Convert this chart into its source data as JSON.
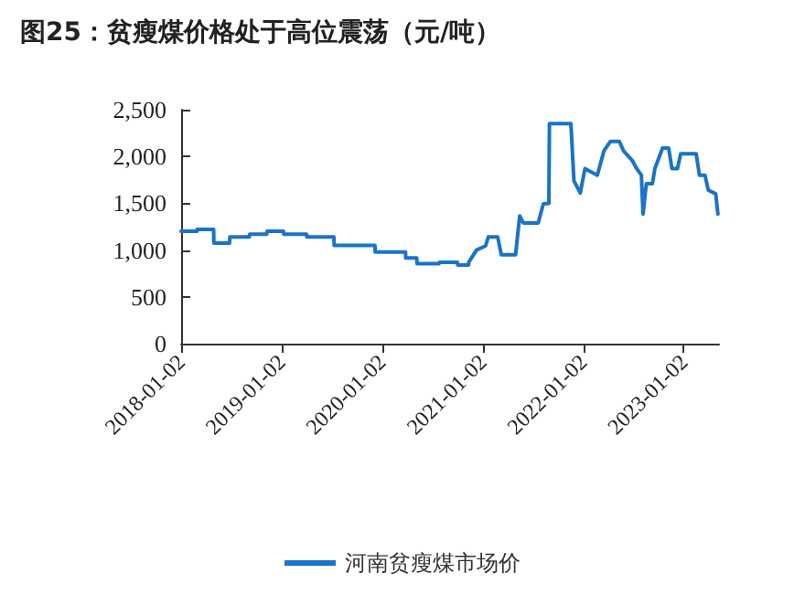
{
  "chart_data": {
    "type": "line",
    "title": "图25：贫瘦煤价格处于高位震荡（元/吨）",
    "legend": "bottom",
    "grid": false,
    "marker": "none",
    "line_style": "solid",
    "xlim": [
      "2018-01-02",
      "2023-05-10"
    ],
    "xticks": [
      "2018-01-02",
      "2019-01-02",
      "2020-01-02",
      "2021-01-02",
      "2022-01-02",
      "2023-01-02"
    ],
    "ylim": [
      0,
      2500
    ],
    "yticks": [
      0,
      500,
      {
        "value": 1000,
        "label": "1,000"
      },
      {
        "value": 1500,
        "label": "1,500"
      },
      {
        "value": 2000,
        "label": "2,000"
      },
      {
        "value": 2500,
        "label": "2,500"
      }
    ],
    "series": [
      {
        "name": "河南贫瘦煤市场价",
        "color": "#1a73c8",
        "x": [
          "2018-01-02",
          "2018-03-01",
          "2018-03-01",
          "2018-04-30",
          "2018-05-01",
          "2018-06-27",
          "2018-06-28",
          "2018-09-07",
          "2018-09-08",
          "2018-11-09",
          "2018-11-10",
          "2019-01-09",
          "2019-01-10",
          "2019-04-03",
          "2019-04-04",
          "2019-07-11",
          "2019-07-12",
          "2019-12-07",
          "2019-12-08",
          "2020-03-27",
          "2020-03-28",
          "2020-05-07",
          "2020-05-08",
          "2020-07-27",
          "2020-07-28",
          "2020-10-02",
          "2020-10-03",
          "2020-11-11",
          "2020-11-12",
          "2020-12-10",
          "2021-01-12",
          "2021-01-22",
          "2021-02-25",
          "2021-03-10",
          "2021-05-01",
          "2021-05-16",
          "2021-05-29",
          "2021-07-22",
          "2021-08-10",
          "2021-08-30",
          "2021-09-01",
          "2021-11-18",
          "2021-11-29",
          "2021-12-22",
          "2022-01-08",
          "2022-02-22",
          "2022-03-18",
          "2022-04-10",
          "2022-05-13",
          "2022-05-28",
          "2022-06-28",
          "2022-07-15",
          "2022-08-01",
          "2022-08-07",
          "2022-08-19",
          "2022-09-10",
          "2022-09-19",
          "2022-10-17",
          "2022-11-08",
          "2022-11-20",
          "2022-12-10",
          "2022-12-22",
          "2023-02-16",
          "2023-02-28",
          "2023-03-20",
          "2023-04-01",
          "2023-04-28",
          "2023-05-06"
        ],
        "values": [
          1200,
          1200,
          1220,
          1220,
          1075,
          1075,
          1140,
          1140,
          1170,
          1170,
          1200,
          1200,
          1170,
          1170,
          1140,
          1140,
          1050,
          1050,
          980,
          980,
          915,
          915,
          855,
          855,
          870,
          870,
          840,
          840,
          870,
          1000,
          1045,
          1140,
          1140,
          950,
          950,
          1365,
          1290,
          1290,
          1495,
          1500,
          2350,
          2350,
          1740,
          1610,
          1870,
          1800,
          2060,
          2160,
          2160,
          2060,
          1960,
          1870,
          1800,
          1385,
          1710,
          1710,
          1870,
          2090,
          2090,
          1870,
          1870,
          2030,
          2030,
          1800,
          1800,
          1640,
          1600,
          1385
        ]
      }
    ]
  }
}
